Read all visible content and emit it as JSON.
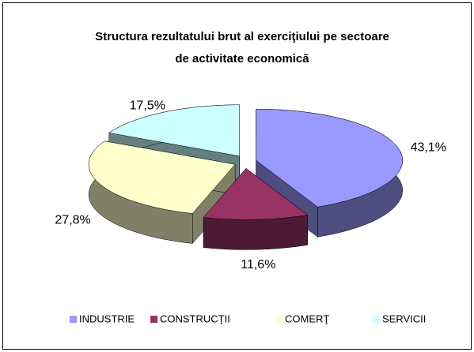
{
  "chart_data": {
    "type": "pie3d",
    "title": [
      "Structura rezultatului brut al exerciţiului pe sectoare",
      "de  activitate economică"
    ],
    "categories": [
      "INDUSTRIE",
      "CONSTRUCŢII",
      "COMERŢ",
      "SERVICII"
    ],
    "values": [
      43.1,
      11.6,
      27.8,
      17.5
    ],
    "value_labels": [
      "43,1%",
      "11,6%",
      "27,8%",
      "17,5%"
    ],
    "colors": [
      "#9999ff",
      "#993366",
      "#ffffcc",
      "#ccffff"
    ],
    "legend": "bottom"
  }
}
